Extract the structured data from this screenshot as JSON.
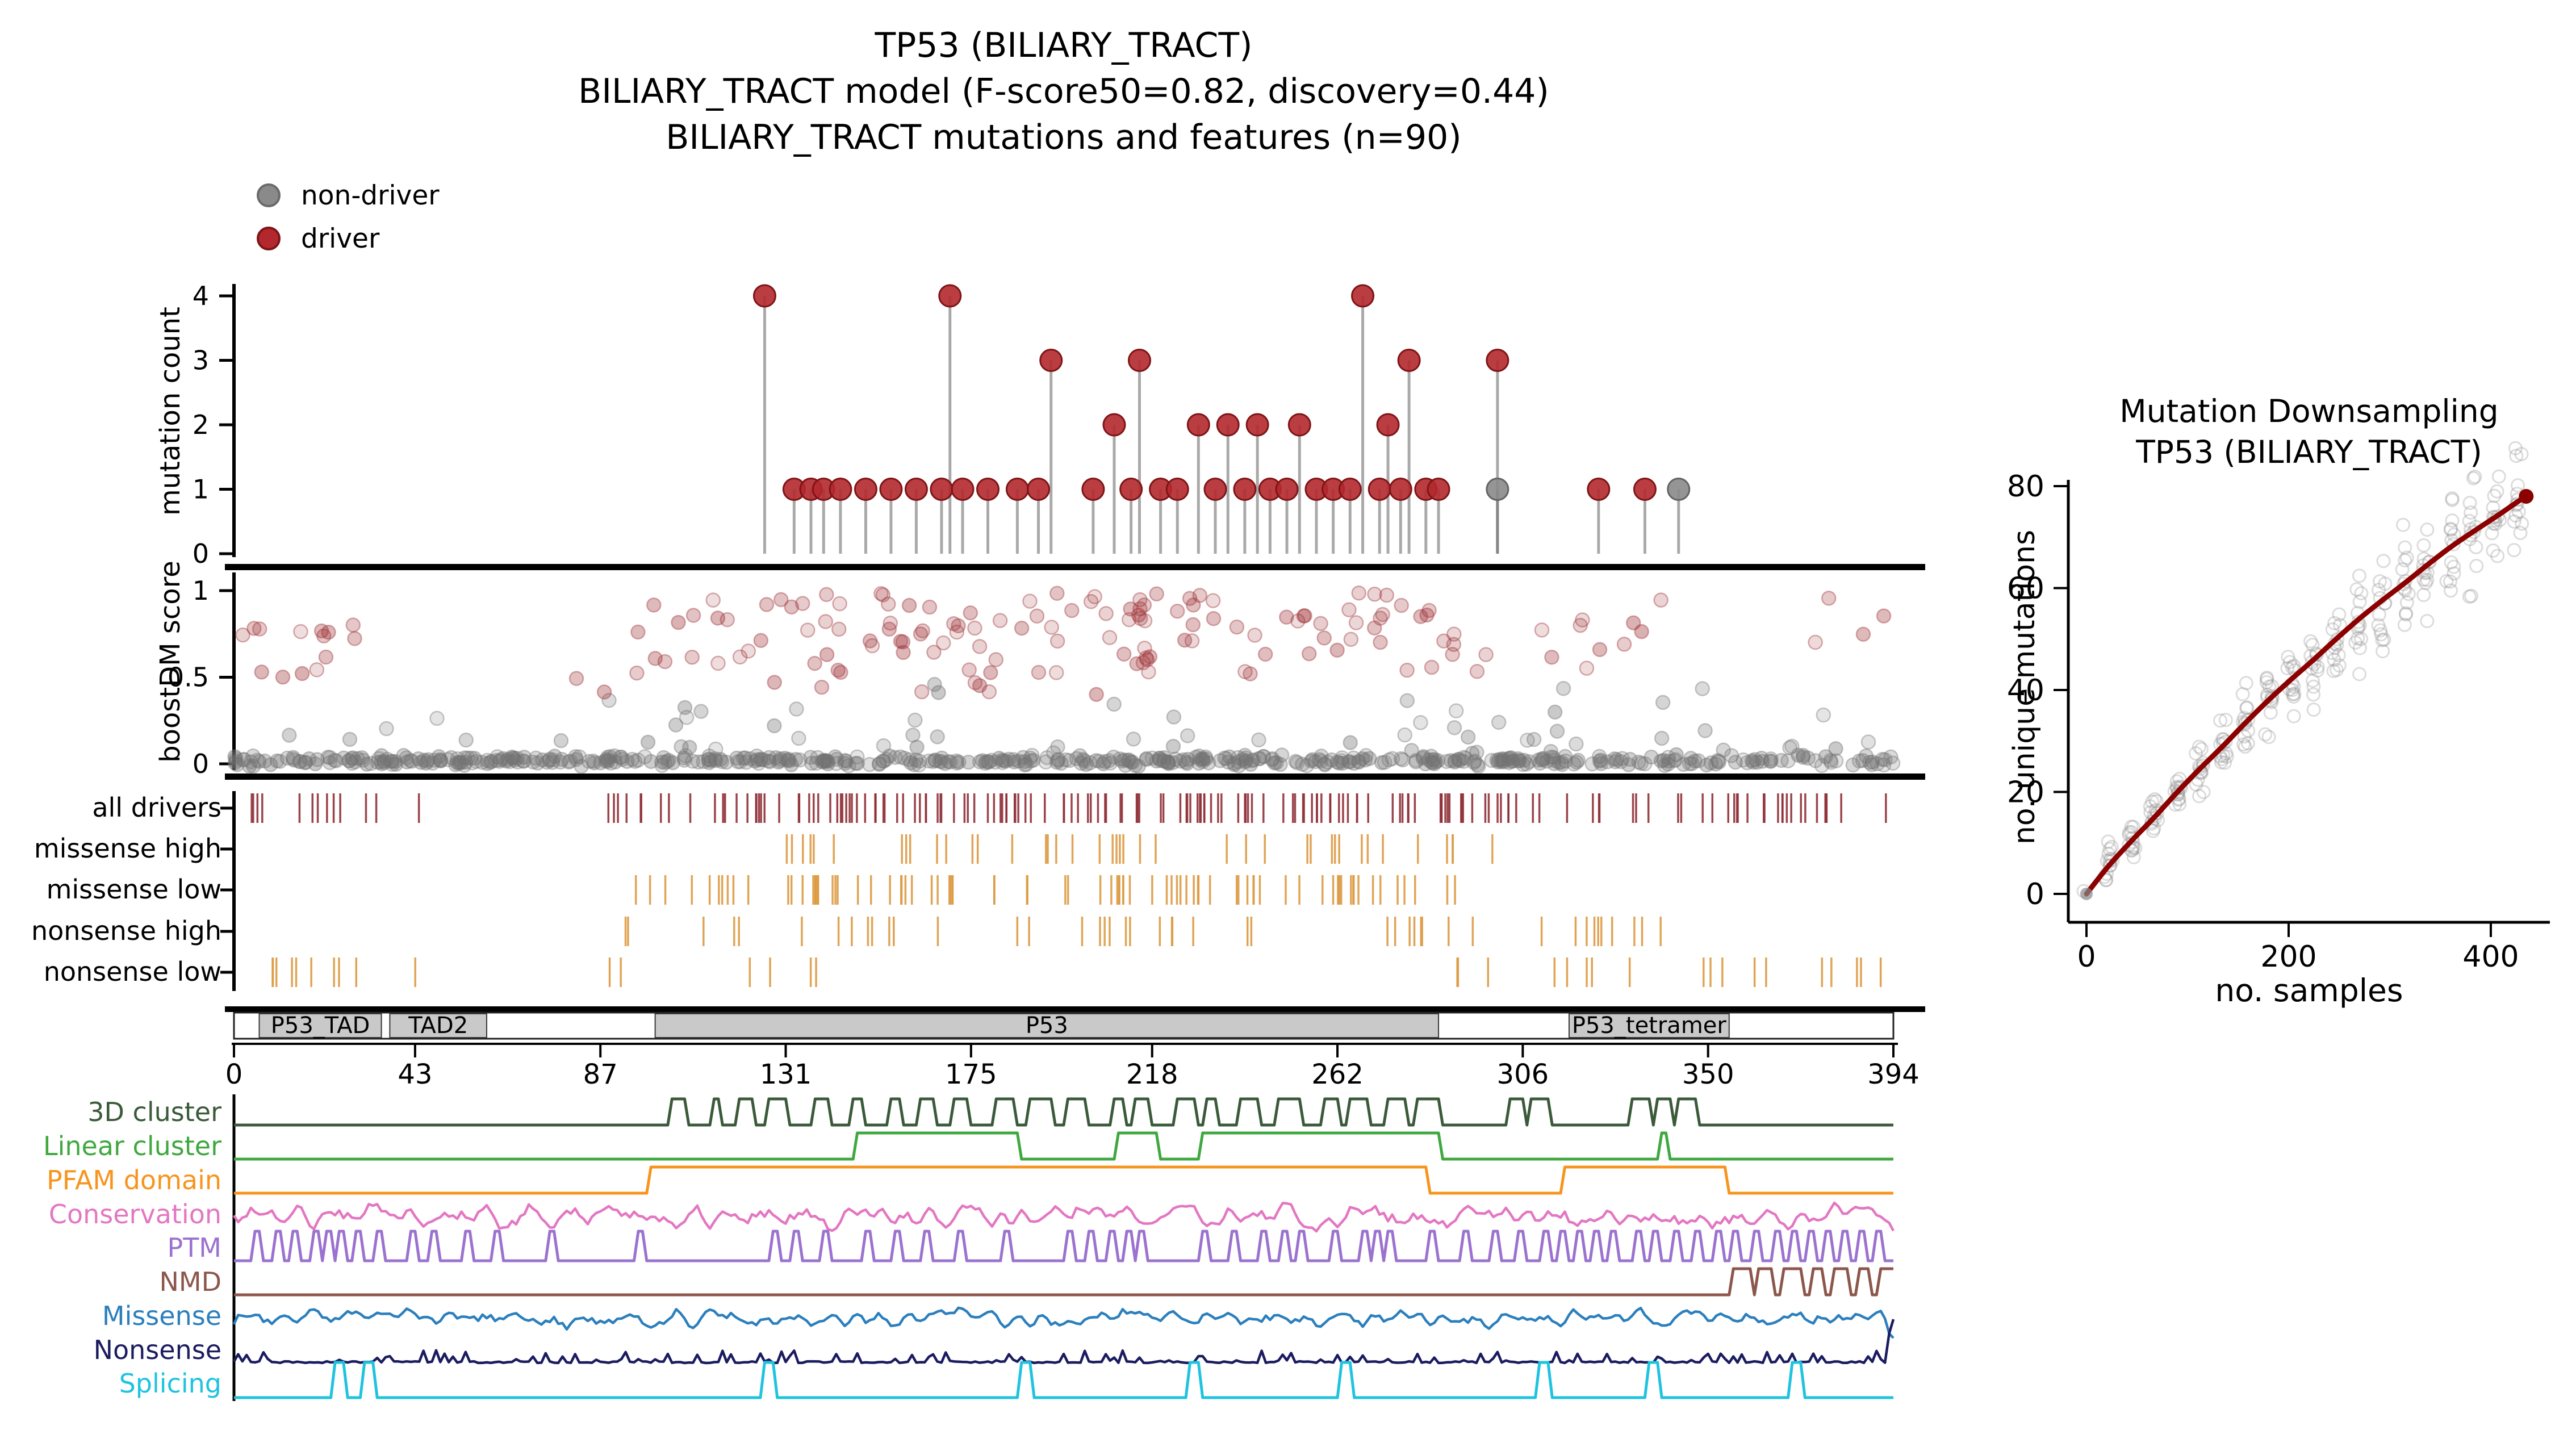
{
  "seed": 7,
  "titles": {
    "line1": "TP53 (BILIARY_TRACT)",
    "line2": "BILIARY_TRACT model (F-score50=0.82, discovery=0.44)",
    "line3": "BILIARY_TRACT mutations and features (n=90)"
  },
  "legend": {
    "non_driver": "non-driver",
    "driver": "driver"
  },
  "colors": {
    "driver": "#b3282d",
    "driver_stroke": "#7e1416",
    "non_driver": "#8a8a8a",
    "non_driver_stroke": "#636363",
    "stem": "#6f6f6f",
    "score_driver": "#9e3136",
    "score_gray": "#737373",
    "raster_driver": "#8f3037",
    "raster_orange": "#dd9a44",
    "domain_fill": "#c9c9c9",
    "domain_edge": "#3a3a3a",
    "downsample_curve": "#8b0000",
    "downsample_point": "#8a8a8a"
  },
  "chart_data": [
    {
      "name": "mutation_needle_plot",
      "type": "lollipop",
      "ylabel": "mutation count",
      "yticks": [
        0,
        1,
        2,
        3,
        4
      ],
      "xlim": [
        0,
        394
      ],
      "points": [
        {
          "pos": 126,
          "count": 4,
          "driver": true
        },
        {
          "pos": 133,
          "count": 1,
          "driver": true
        },
        {
          "pos": 137,
          "count": 1,
          "driver": true
        },
        {
          "pos": 140,
          "count": 1,
          "driver": true
        },
        {
          "pos": 144,
          "count": 1,
          "driver": true
        },
        {
          "pos": 150,
          "count": 1,
          "driver": true
        },
        {
          "pos": 156,
          "count": 1,
          "driver": true
        },
        {
          "pos": 162,
          "count": 1,
          "driver": true
        },
        {
          "pos": 168,
          "count": 1,
          "driver": true
        },
        {
          "pos": 170,
          "count": 4,
          "driver": true
        },
        {
          "pos": 173,
          "count": 1,
          "driver": true
        },
        {
          "pos": 179,
          "count": 1,
          "driver": true
        },
        {
          "pos": 186,
          "count": 1,
          "driver": true
        },
        {
          "pos": 191,
          "count": 1,
          "driver": true
        },
        {
          "pos": 194,
          "count": 3,
          "driver": true
        },
        {
          "pos": 204,
          "count": 1,
          "driver": true
        },
        {
          "pos": 209,
          "count": 2,
          "driver": true
        },
        {
          "pos": 213,
          "count": 1,
          "driver": true
        },
        {
          "pos": 215,
          "count": 3,
          "driver": true
        },
        {
          "pos": 220,
          "count": 1,
          "driver": true
        },
        {
          "pos": 224,
          "count": 1,
          "driver": true
        },
        {
          "pos": 229,
          "count": 2,
          "driver": true
        },
        {
          "pos": 233,
          "count": 1,
          "driver": true
        },
        {
          "pos": 236,
          "count": 2,
          "driver": true
        },
        {
          "pos": 240,
          "count": 1,
          "driver": true
        },
        {
          "pos": 243,
          "count": 2,
          "driver": true
        },
        {
          "pos": 246,
          "count": 1,
          "driver": true
        },
        {
          "pos": 250,
          "count": 1,
          "driver": true
        },
        {
          "pos": 253,
          "count": 2,
          "driver": true
        },
        {
          "pos": 257,
          "count": 1,
          "driver": true
        },
        {
          "pos": 261,
          "count": 1,
          "driver": true
        },
        {
          "pos": 265,
          "count": 1,
          "driver": true
        },
        {
          "pos": 268,
          "count": 4,
          "driver": true
        },
        {
          "pos": 272,
          "count": 1,
          "driver": true
        },
        {
          "pos": 274,
          "count": 2,
          "driver": true
        },
        {
          "pos": 277,
          "count": 1,
          "driver": true
        },
        {
          "pos": 279,
          "count": 3,
          "driver": true
        },
        {
          "pos": 283,
          "count": 1,
          "driver": true
        },
        {
          "pos": 286,
          "count": 1,
          "driver": true
        },
        {
          "pos": 300,
          "count": 3,
          "driver": true
        },
        {
          "pos": 300,
          "count": 1,
          "driver": false
        },
        {
          "pos": 324,
          "count": 1,
          "driver": true
        },
        {
          "pos": 335,
          "count": 1,
          "driver": true
        },
        {
          "pos": 343,
          "count": 1,
          "driver": false
        }
      ]
    },
    {
      "name": "boostdm_score_scatter",
      "type": "scatter",
      "ylabel": "boostDM score",
      "yticks": [
        0,
        0.5,
        1
      ],
      "ylim": [
        0,
        1
      ],
      "clusters": [
        {
          "label": "non-driver baseline",
          "color": "gray",
          "n": 540,
          "x": [
            0,
            394
          ],
          "y": [
            0.0,
            0.035
          ]
        },
        {
          "label": "non-driver low-mid",
          "color": "gray",
          "n": 66,
          "x": [
            88,
            394
          ],
          "y": [
            0.05,
            0.46
          ]
        },
        {
          "label": "non-driver left sparse",
          "color": "gray",
          "n": 6,
          "x": [
            5,
            90
          ],
          "y": [
            0.08,
            0.25
          ]
        },
        {
          "label": "driver high core",
          "color": "red",
          "n": 128,
          "x": [
            95,
            300
          ],
          "y": [
            0.52,
            1.0
          ]
        },
        {
          "label": "driver left",
          "color": "red",
          "n": 14,
          "x": [
            0,
            30
          ],
          "y": [
            0.5,
            0.85
          ]
        },
        {
          "label": "driver right sparse",
          "color": "red",
          "n": 14,
          "x": [
            310,
            394
          ],
          "y": [
            0.55,
            1.0
          ]
        },
        {
          "label": "driver scattered mid",
          "color": "red",
          "n": 9,
          "x": [
            60,
            280
          ],
          "y": [
            0.38,
            0.55
          ]
        }
      ]
    },
    {
      "name": "driver_rasters",
      "type": "tick-raster",
      "rows": [
        {
          "label": "all drivers",
          "color": "driver",
          "segments": [
            [
              2,
              26,
              10
            ],
            [
              30,
              34,
              2
            ],
            [
              43,
              44,
              1
            ],
            [
              88,
              117,
              12
            ],
            [
              118,
              160,
              30
            ],
            [
              160,
              200,
              26
            ],
            [
              200,
              240,
              26
            ],
            [
              240,
              300,
              40
            ],
            [
              300,
              340,
              14
            ],
            [
              340,
              394,
              24
            ]
          ]
        },
        {
          "label": "missense high",
          "color": "orange",
          "segments": [
            [
              130,
              150,
              6
            ],
            [
              156,
              200,
              12
            ],
            [
              205,
              245,
              10
            ],
            [
              250,
              300,
              13
            ]
          ]
        },
        {
          "label": "missense low",
          "color": "orange",
          "segments": [
            [
              95,
              160,
              28
            ],
            [
              160,
              230,
              30
            ],
            [
              230,
              295,
              26
            ]
          ]
        },
        {
          "label": "nonsense high",
          "color": "orange",
          "segments": [
            [
              88,
              120,
              5
            ],
            [
              130,
              170,
              8
            ],
            [
              175,
              215,
              8
            ],
            [
              216,
              250,
              6
            ],
            [
              268,
              300,
              8
            ],
            [
              305,
              340,
              10
            ]
          ]
        },
        {
          "label": "nonsense low",
          "color": "orange",
          "segments": [
            [
              2,
              30,
              9
            ],
            [
              43,
              44,
              1
            ],
            [
              88,
              95,
              2
            ],
            [
              118,
              128,
              2
            ],
            [
              133,
              142,
              2
            ],
            [
              290,
              340,
              8
            ],
            [
              345,
              394,
              10
            ]
          ]
        }
      ]
    },
    {
      "name": "protein_domains",
      "type": "domain-bar",
      "xticks": [
        0,
        43,
        87,
        131,
        175,
        218,
        262,
        306,
        350,
        394
      ],
      "xlim": [
        0,
        394
      ],
      "blocks": [
        {
          "label": "P53_TAD",
          "start": 6,
          "end": 35
        },
        {
          "label": "TAD2",
          "start": 37,
          "end": 60
        },
        {
          "label": "P53",
          "start": 100,
          "end": 286
        },
        {
          "label": "P53_tetramer",
          "start": 317,
          "end": 355
        }
      ]
    },
    {
      "name": "feature_tracks",
      "type": "line-tracks",
      "rows": [
        {
          "label": "3D cluster",
          "color": "#3a5a3a",
          "kind": "squarewiggle",
          "active": [
            [
              104,
              287
            ]
          ],
          "bumps": [
            [
              303,
              306
            ],
            [
              308,
              312
            ],
            [
              332,
              336
            ],
            [
              338,
              341
            ],
            [
              343,
              347
            ]
          ]
        },
        {
          "label": "Linear cluster",
          "color": "#3fa83f",
          "kind": "plateau",
          "plateaus": [
            [
              148,
              186
            ],
            [
              210,
              219
            ],
            [
              230,
              286
            ]
          ],
          "spikes": [
            339
          ]
        },
        {
          "label": "PFAM domain",
          "color": "#f7941d",
          "kind": "plateau",
          "plateaus": [
            [
              99,
              283
            ],
            [
              316,
              354
            ]
          ],
          "spikes": []
        },
        {
          "label": "Conservation",
          "color": "#e377c2",
          "kind": "noise",
          "amp": 0.6
        },
        {
          "label": "PTM",
          "color": "#9b72cf",
          "kind": "spiketrain",
          "width": 2,
          "spikes": [
            5,
            10,
            14,
            19,
            22,
            25,
            29,
            34,
            42,
            47,
            55,
            62,
            75,
            96,
            128,
            133,
            140,
            150,
            157,
            164,
            172,
            183,
            198,
            203,
            208,
            212,
            215,
            230,
            237,
            244,
            249,
            253,
            261,
            268,
            271,
            274,
            284,
            292,
            299,
            305,
            311,
            315,
            319,
            323,
            327,
            333,
            337,
            342,
            347,
            352,
            356,
            361,
            366,
            370,
            374,
            378,
            382,
            386,
            390
          ]
        },
        {
          "label": "NMD",
          "color": "#8c564b",
          "kind": "plateau",
          "plateaus": [
            [
              356,
              360
            ],
            [
              362,
              365
            ],
            [
              368,
              372
            ],
            [
              375,
              377
            ],
            [
              380,
              383
            ],
            [
              386,
              388
            ],
            [
              391,
              394
            ]
          ],
          "spikes": []
        },
        {
          "label": "Missense",
          "color": "#2b7fbd",
          "kind": "noise",
          "amp": 0.45,
          "enddip": true
        },
        {
          "label": "Nonsense",
          "color": "#1b1b60",
          "kind": "noiselow",
          "amp": 0.22,
          "endspike": true
        },
        {
          "label": "Splicing",
          "color": "#1fc3e0",
          "kind": "spiketrain",
          "width": 3,
          "tall": true,
          "spikes": [
            24,
            31,
            126,
            187,
            227,
            263,
            310,
            336,
            370
          ]
        }
      ]
    },
    {
      "name": "mutation_downsampling",
      "type": "scatter+line",
      "title_line1": "Mutation Downsampling",
      "title_line2": "TP53 (BILIARY_TRACT)",
      "xlabel": "no. samples",
      "ylabel": "no. unique mutations",
      "xticks": [
        0,
        200,
        400
      ],
      "yticks": [
        0,
        20,
        40,
        60,
        80
      ],
      "xlim": [
        0,
        450
      ],
      "ylim": [
        0,
        80
      ],
      "sample_x": [
        0,
        22,
        45,
        67,
        90,
        112,
        135,
        157,
        180,
        202,
        225,
        247,
        270,
        292,
        315,
        337,
        360,
        382,
        405,
        427
      ],
      "median_unique": [
        0,
        5.5,
        10.5,
        15,
        20,
        24.5,
        29,
        33.5,
        38,
        42,
        46,
        50,
        54,
        57.5,
        61,
        64.5,
        68,
        71,
        74,
        77
      ],
      "points_per_column": 14,
      "final_point": {
        "x": 435,
        "y": 78
      }
    }
  ]
}
